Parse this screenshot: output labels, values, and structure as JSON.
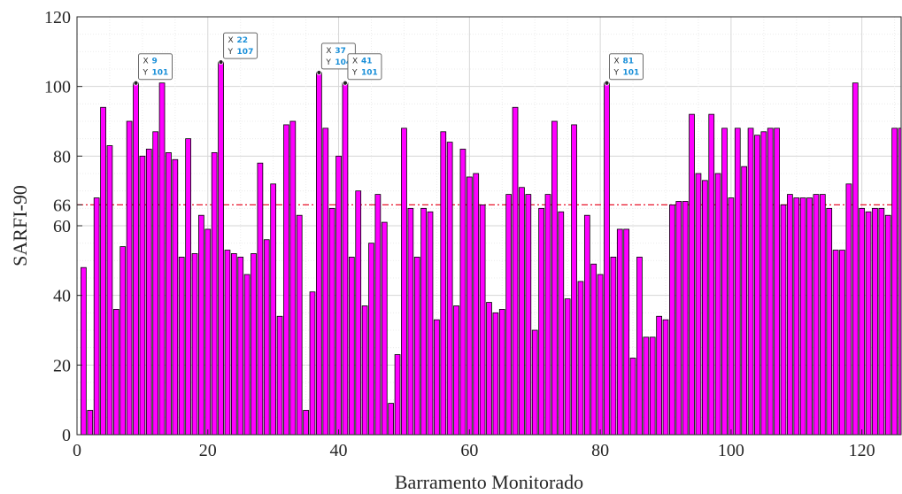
{
  "chart_data": {
    "type": "bar",
    "xlabel": "Barramento Monitorado",
    "ylabel": "SARFI-90",
    "xlim": [
      0,
      126
    ],
    "ylim": [
      0,
      120
    ],
    "xticks": [
      0,
      20,
      40,
      60,
      80,
      100,
      120
    ],
    "yticks": [
      0,
      20,
      40,
      60,
      66,
      80,
      100,
      120
    ],
    "grid": true,
    "bar_color": "#ff00ff",
    "bar_edge_color": "#000000",
    "reference_line": {
      "y": 66,
      "color": "#e8132b",
      "style": "dash-dot"
    },
    "x": [
      1,
      2,
      3,
      4,
      5,
      6,
      7,
      8,
      9,
      10,
      11,
      12,
      13,
      14,
      15,
      16,
      17,
      18,
      19,
      20,
      21,
      22,
      23,
      24,
      25,
      26,
      27,
      28,
      29,
      30,
      31,
      32,
      33,
      34,
      35,
      36,
      37,
      38,
      39,
      40,
      41,
      42,
      43,
      44,
      45,
      46,
      47,
      48,
      49,
      50,
      51,
      52,
      53,
      54,
      55,
      56,
      57,
      58,
      59,
      60,
      61,
      62,
      63,
      64,
      65,
      66,
      67,
      68,
      69,
      70,
      71,
      72,
      73,
      74,
      75,
      76,
      77,
      78,
      79,
      80,
      81,
      82,
      83,
      84,
      85,
      86,
      87,
      88,
      89,
      90,
      91,
      92,
      93,
      94,
      95,
      96,
      97,
      98,
      99,
      100,
      101,
      102,
      103,
      104,
      105,
      106,
      107,
      108,
      109,
      110,
      111,
      112,
      113,
      114,
      115,
      116,
      117,
      118,
      119,
      120,
      121,
      122,
      123,
      124,
      125,
      126
    ],
    "values": [
      48,
      7,
      68,
      94,
      83,
      36,
      54,
      90,
      101,
      80,
      82,
      87,
      101,
      81,
      79,
      51,
      85,
      52,
      63,
      59,
      81,
      107,
      53,
      52,
      51,
      46,
      52,
      78,
      56,
      72,
      34,
      89,
      90,
      63,
      7,
      41,
      104,
      88,
      65,
      80,
      101,
      51,
      70,
      37,
      55,
      69,
      61,
      9,
      23,
      88,
      65,
      51,
      65,
      64,
      33,
      87,
      84,
      37,
      82,
      74,
      75,
      66,
      38,
      35,
      36,
      69,
      94,
      71,
      69,
      30,
      65,
      69,
      90,
      64,
      39,
      89,
      44,
      63,
      49,
      46,
      101,
      51,
      59,
      59,
      22,
      51,
      28,
      28,
      34,
      33,
      66,
      67,
      67,
      92,
      75,
      73,
      92,
      75,
      88,
      68,
      88,
      77,
      88,
      86,
      87,
      88,
      88,
      66,
      69,
      68,
      68,
      68,
      69,
      69,
      65,
      53,
      53,
      72,
      101,
      65,
      64,
      65,
      65,
      63,
      88,
      88
    ],
    "datatips": [
      {
        "x_label": "X",
        "x": "9",
        "y_label": "Y",
        "y": "101"
      },
      {
        "x_label": "X",
        "x": "22",
        "y_label": "Y",
        "y": "107"
      },
      {
        "x_label": "X",
        "x": "37",
        "y_label": "Y",
        "y": "104"
      },
      {
        "x_label": "X",
        "x": "41",
        "y_label": "Y",
        "y": "101"
      },
      {
        "x_label": "X",
        "x": "81",
        "y_label": "Y",
        "y": "101"
      }
    ]
  }
}
